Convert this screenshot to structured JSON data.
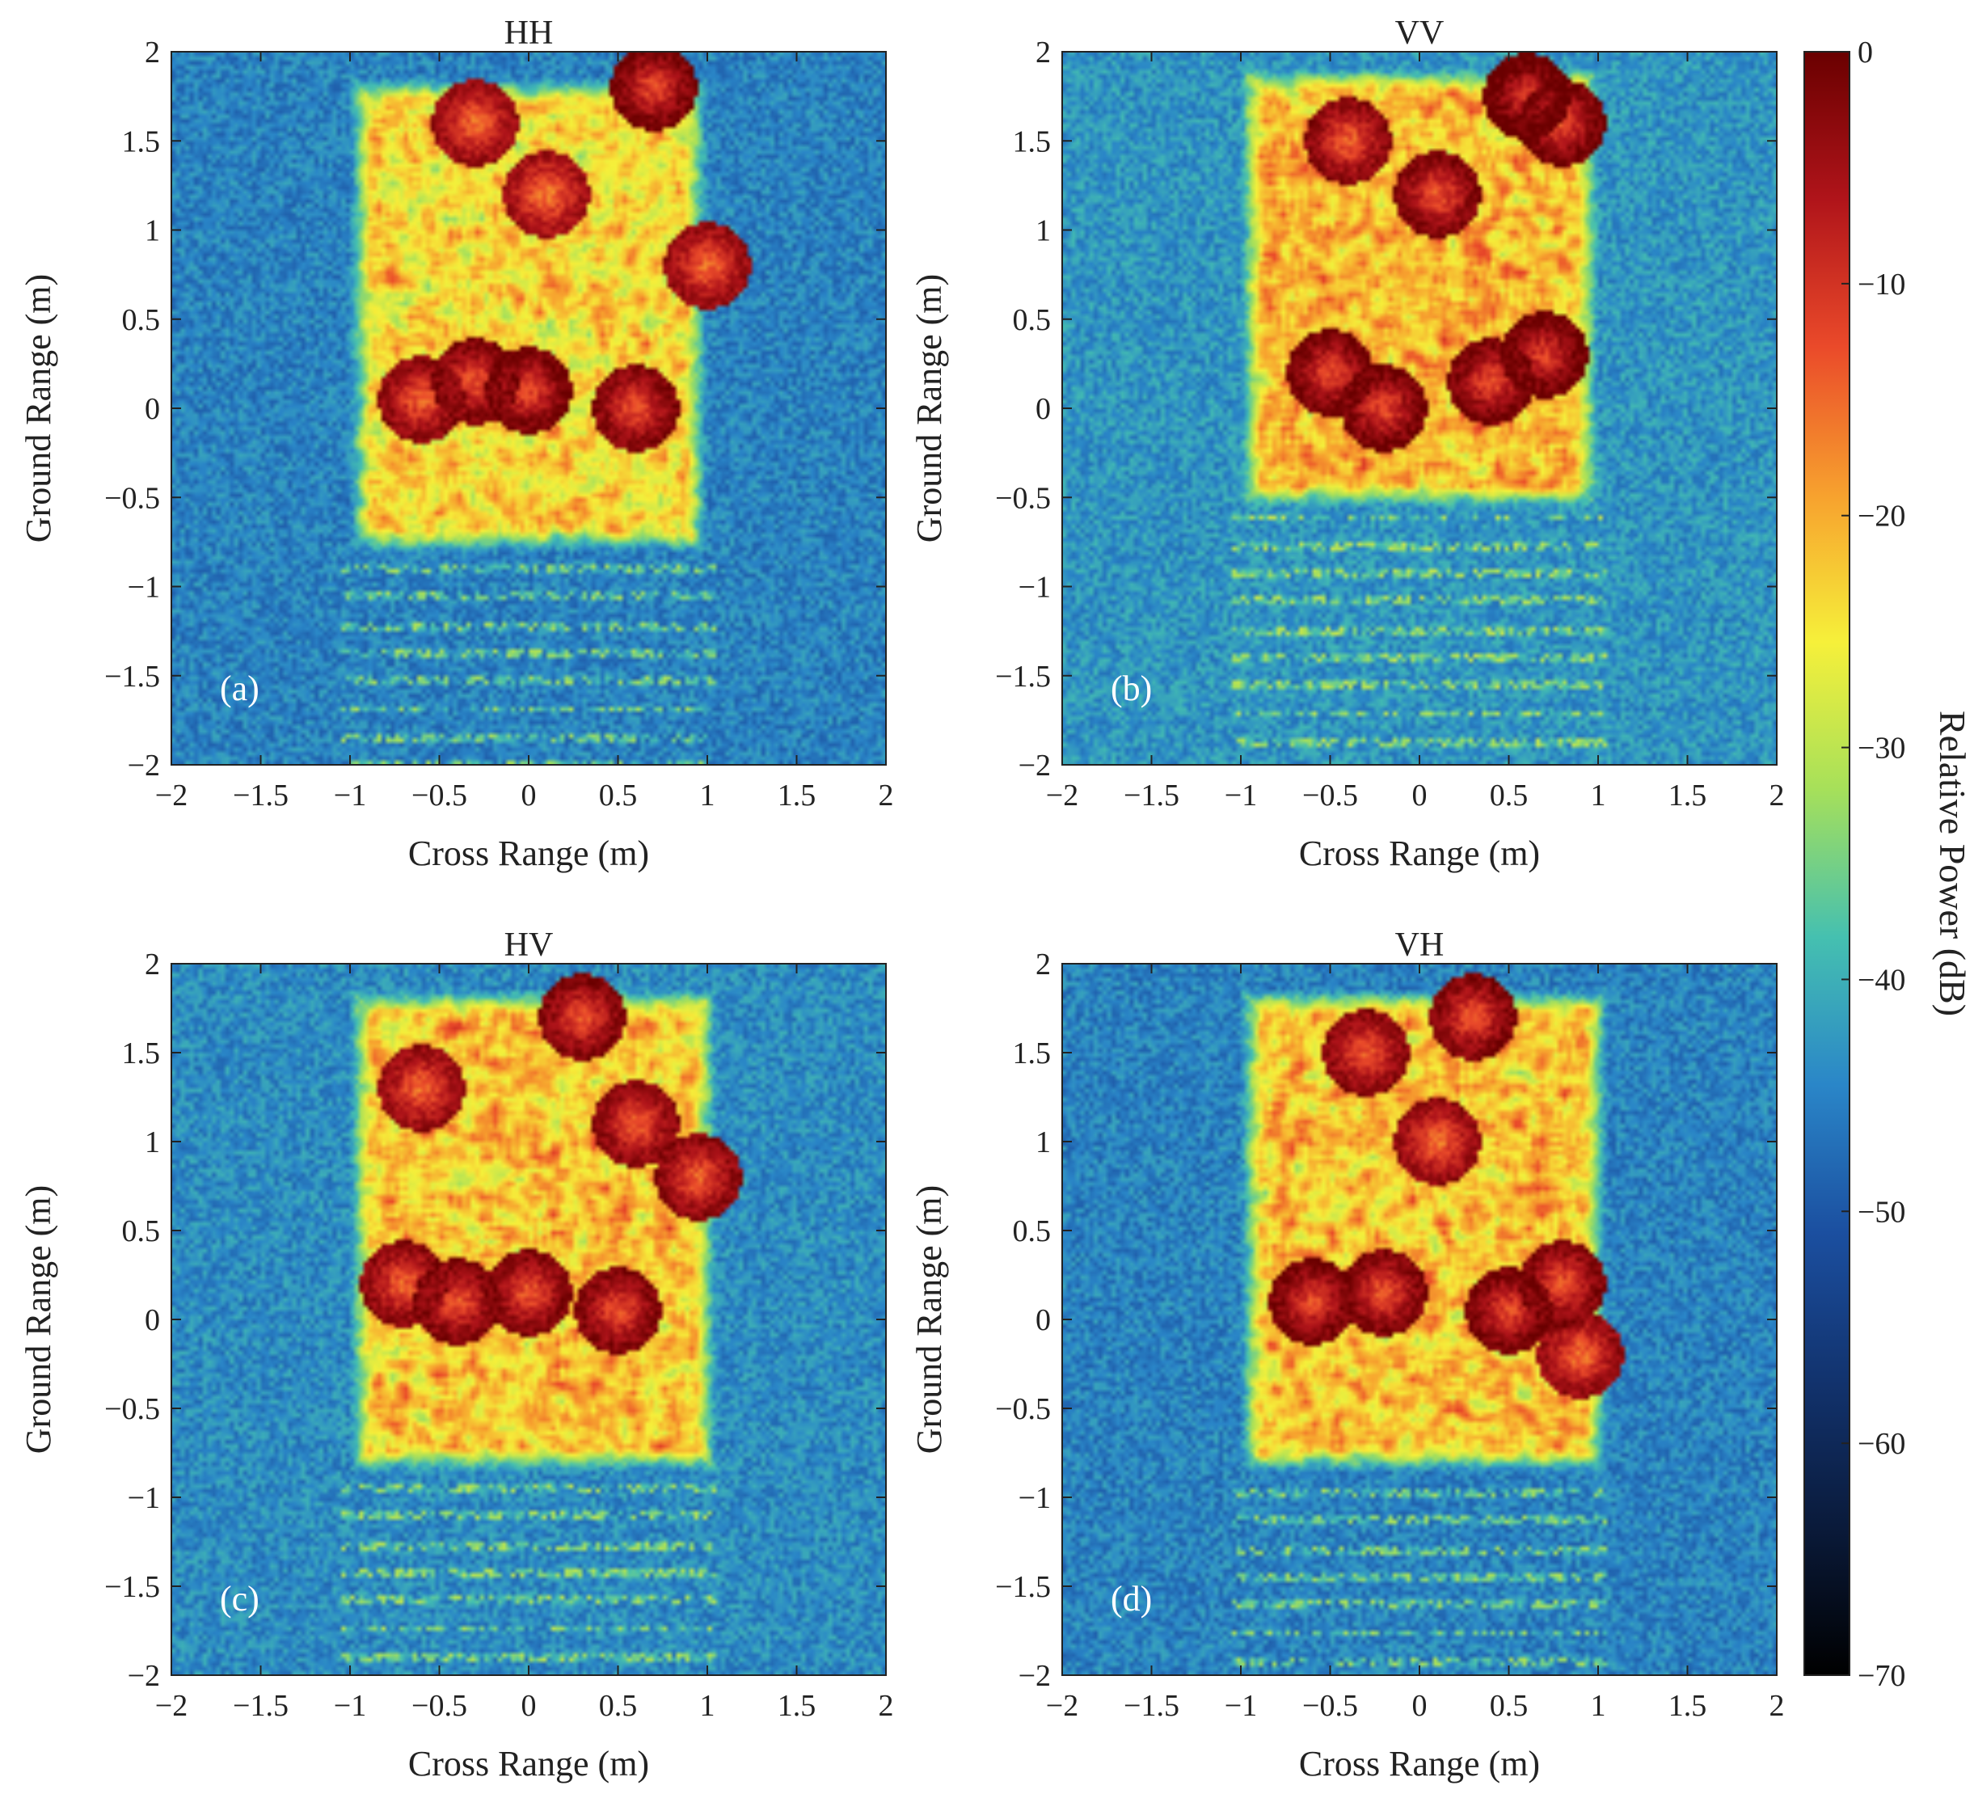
{
  "chart_data": {
    "type": "heatmap",
    "colormap": [
      "#000000",
      "#0a1a3a",
      "#12336e",
      "#1b4fa0",
      "#2a86c8",
      "#45c0b0",
      "#a6e05a",
      "#f6f03a",
      "#f7a12e",
      "#ea4a2a",
      "#b0141a",
      "#6a0000"
    ],
    "colorbar": {
      "label": "Relative Power (dB)",
      "range": [
        -70,
        0
      ],
      "ticks": [
        0,
        -10,
        -20,
        -30,
        -40,
        -50,
        -60,
        -70
      ],
      "tick_labels": [
        "0",
        "−10",
        "−20",
        "−30",
        "−40",
        "−50",
        "−60",
        "−70"
      ]
    },
    "panels": [
      {
        "title": "HH",
        "letter": "(a)",
        "xlabel": "Cross Range (m)",
        "ylabel": "Ground Range (m)",
        "xlim": [
          -2,
          2
        ],
        "ylim": [
          -2,
          2
        ],
        "background_db": -45,
        "target": {
          "x_range": [
            -1,
            1
          ],
          "y_range": [
            -0.8,
            1.85
          ],
          "mean_db": -24
        },
        "hotspots": [
          {
            "x": -0.3,
            "y": 0.15,
            "db": -13
          },
          {
            "x": 0.0,
            "y": 0.1,
            "db": -12
          },
          {
            "x": 0.6,
            "y": 0.0,
            "db": -13
          },
          {
            "x": -0.6,
            "y": 0.05,
            "db": -14
          },
          {
            "x": 0.7,
            "y": 1.8,
            "db": -12
          },
          {
            "x": -0.3,
            "y": 1.6,
            "db": -15
          },
          {
            "x": 0.1,
            "y": 1.2,
            "db": -16
          },
          {
            "x": 1.0,
            "y": 0.8,
            "db": -15
          }
        ]
      },
      {
        "title": "VV",
        "letter": "(b)",
        "xlabel": "Cross Range (m)",
        "ylabel": "Ground Range (m)",
        "xlim": [
          -2,
          2
        ],
        "ylim": [
          -2,
          2
        ],
        "background_db": -43,
        "target": {
          "x_range": [
            -1,
            1
          ],
          "y_range": [
            -0.55,
            1.9
          ],
          "mean_db": -21
        },
        "hotspots": [
          {
            "x": -0.5,
            "y": 0.2,
            "db": -12
          },
          {
            "x": -0.2,
            "y": 0.0,
            "db": -12
          },
          {
            "x": 0.4,
            "y": 0.15,
            "db": -12
          },
          {
            "x": 0.7,
            "y": 0.3,
            "db": -11
          },
          {
            "x": 0.6,
            "y": 1.75,
            "db": -10
          },
          {
            "x": 0.1,
            "y": 1.2,
            "db": -13
          },
          {
            "x": -0.4,
            "y": 1.5,
            "db": -14
          },
          {
            "x": 0.8,
            "y": 1.6,
            "db": -12
          }
        ]
      },
      {
        "title": "HV",
        "letter": "(c)",
        "xlabel": "Cross Range (m)",
        "ylabel": "Ground Range (m)",
        "xlim": [
          -2,
          2
        ],
        "ylim": [
          -2,
          2
        ],
        "background_db": -44,
        "target": {
          "x_range": [
            -1,
            1.05
          ],
          "y_range": [
            -0.85,
            1.85
          ],
          "mean_db": -22
        },
        "hotspots": [
          {
            "x": -0.4,
            "y": 0.1,
            "db": -13
          },
          {
            "x": 0.0,
            "y": 0.15,
            "db": -13
          },
          {
            "x": 0.5,
            "y": 0.05,
            "db": -13
          },
          {
            "x": -0.7,
            "y": 0.2,
            "db": -14
          },
          {
            "x": 0.3,
            "y": 1.7,
            "db": -13
          },
          {
            "x": 0.6,
            "y": 1.1,
            "db": -14
          },
          {
            "x": -0.6,
            "y": 1.3,
            "db": -15
          },
          {
            "x": 0.95,
            "y": 0.8,
            "db": -14
          }
        ]
      },
      {
        "title": "VH",
        "letter": "(d)",
        "xlabel": "Cross Range (m)",
        "ylabel": "Ground Range (m)",
        "xlim": [
          -2,
          2
        ],
        "ylim": [
          -2,
          2
        ],
        "background_db": -45,
        "target": {
          "x_range": [
            -1,
            1.05
          ],
          "y_range": [
            -0.85,
            1.85
          ],
          "mean_db": -22
        },
        "hotspots": [
          {
            "x": -0.6,
            "y": 0.1,
            "db": -12
          },
          {
            "x": -0.2,
            "y": 0.15,
            "db": -13
          },
          {
            "x": 0.5,
            "y": 0.05,
            "db": -12
          },
          {
            "x": 0.8,
            "y": 0.2,
            "db": -13
          },
          {
            "x": 0.3,
            "y": 1.7,
            "db": -13
          },
          {
            "x": -0.3,
            "y": 1.5,
            "db": -14
          },
          {
            "x": 0.9,
            "y": -0.2,
            "db": -15
          },
          {
            "x": 0.1,
            "y": 1.0,
            "db": -15
          }
        ]
      }
    ],
    "x_ticks": [
      -2,
      -1.5,
      -1,
      -0.5,
      0,
      0.5,
      1,
      1.5,
      2
    ],
    "x_tick_labels": [
      "−2",
      "−1.5",
      "−1",
      "−0.5",
      "0",
      "0.5",
      "1",
      "1.5",
      "2"
    ],
    "y_ticks": [
      2,
      1.5,
      1,
      0.5,
      0,
      -0.5,
      -1,
      -1.5,
      -2
    ],
    "y_tick_labels": [
      "2",
      "1.5",
      "1",
      "0.5",
      "0",
      "−0.5",
      "−1",
      "−1.5",
      "−2"
    ]
  }
}
